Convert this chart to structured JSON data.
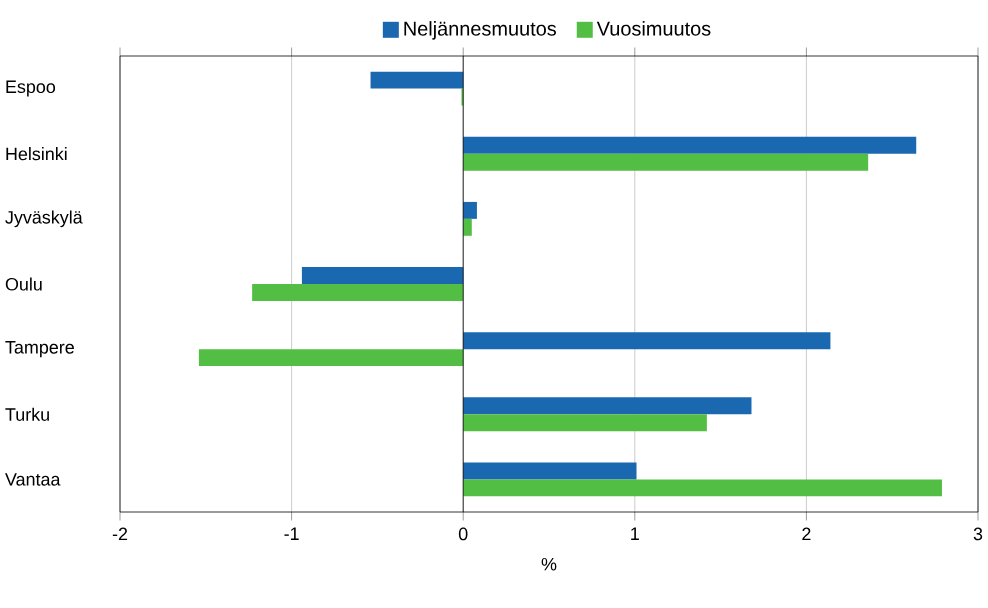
{
  "chart_data": {
    "type": "bar",
    "orientation": "horizontal",
    "xlabel": "%",
    "categories": [
      "Espoo",
      "Helsinki",
      "Jyväskylä",
      "Oulu",
      "Tampere",
      "Turku",
      "Vantaa"
    ],
    "series": [
      {
        "name": "Neljännesmuutos",
        "color": "#1a69b0",
        "values": [
          -0.54,
          2.64,
          0.08,
          -0.94,
          2.14,
          1.68,
          1.01
        ]
      },
      {
        "name": "Vuosimuutos",
        "color": "#53be44",
        "values": [
          -0.01,
          2.36,
          0.05,
          -1.23,
          -1.54,
          1.42,
          2.79
        ]
      }
    ],
    "xlim": [
      -2,
      3
    ],
    "xticks": [
      -2,
      -1,
      0,
      1,
      2,
      3
    ],
    "grid": "x",
    "legend": "top"
  }
}
